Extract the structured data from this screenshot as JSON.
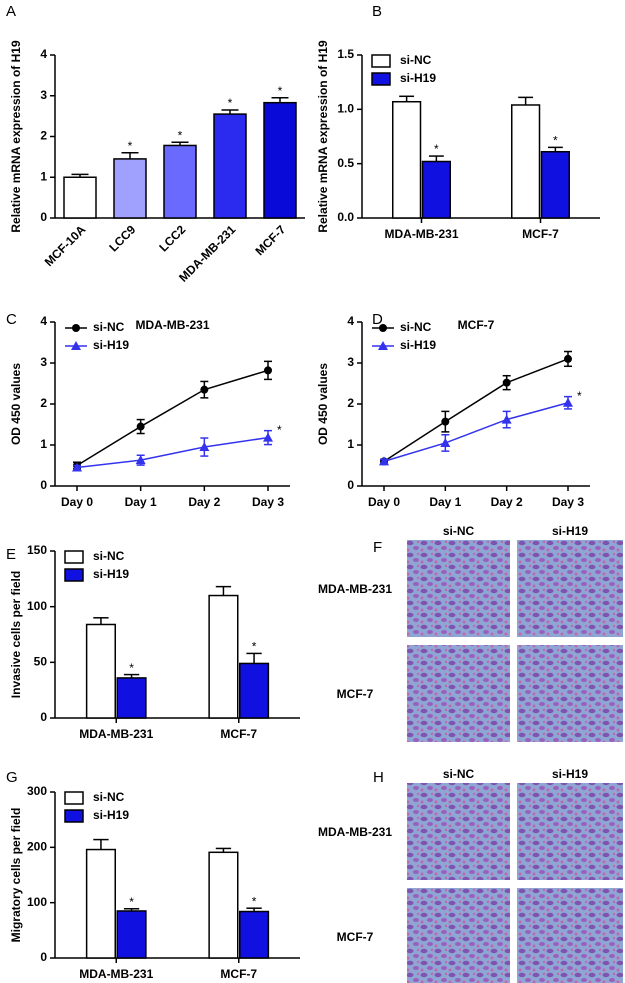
{
  "chart_data": [
    {
      "type": "bar",
      "letter": "A",
      "ylabel": "Relative mRNA expression of H19",
      "categories": [
        "MCF-10A",
        "LCC9",
        "LCC2",
        "MDA-MB-231",
        "MCF-7"
      ],
      "values": [
        1.0,
        1.45,
        1.78,
        2.55,
        2.83
      ],
      "errors": [
        0.07,
        0.15,
        0.08,
        0.1,
        0.12
      ],
      "markers": [
        null,
        "*",
        "*",
        "*",
        "*"
      ],
      "colors": [
        "#ffffff",
        "#a0a0ff",
        "#6a6aff",
        "#2b2bf0",
        "#0a0ad8"
      ],
      "ylim": [
        0,
        4
      ],
      "yticks": [
        0,
        1,
        2,
        3,
        4
      ]
    },
    {
      "type": "bar",
      "letter": "B",
      "ylabel": "Relative mRNA expression of H19",
      "categories": [
        "MDA-MB-231",
        "MCF-7"
      ],
      "series": [
        {
          "name": "si-NC",
          "color": "#ffffff",
          "values": [
            1.07,
            1.04
          ],
          "errors": [
            0.05,
            0.07
          ]
        },
        {
          "name": "si-H19",
          "color": "#1010e0",
          "values": [
            0.52,
            0.61
          ],
          "errors": [
            0.05,
            0.04
          ],
          "markers": [
            "*",
            "*"
          ]
        }
      ],
      "ylim": [
        0,
        1.5
      ],
      "yticks": [
        {
          "value": 0,
          "label": "0.0"
        },
        0.5,
        {
          "value": 1,
          "label": "1.0"
        },
        1.5
      ],
      "legend": "upper left"
    },
    {
      "type": "line",
      "letter": "C",
      "annotation": "MDA-MB-231",
      "ylabel": "OD 450 values",
      "categories": [
        "Day 0",
        "Day 1",
        "Day 2",
        "Day 3"
      ],
      "series": [
        {
          "name": "si-NC",
          "color": "#000000",
          "marker": "circle",
          "values": [
            0.5,
            1.45,
            2.35,
            2.82
          ],
          "errors": [
            0.08,
            0.17,
            0.2,
            0.22
          ]
        },
        {
          "name": "si-H19",
          "color": "#3333ee",
          "marker": "triangle",
          "values": [
            0.45,
            0.63,
            0.95,
            1.18
          ],
          "errors": [
            0.05,
            0.12,
            0.22,
            0.17
          ],
          "markers": [
            null,
            null,
            null,
            "*"
          ]
        }
      ],
      "ylim": [
        0,
        4
      ],
      "yticks": [
        0,
        1,
        2,
        3,
        4
      ],
      "legend": "upper left"
    },
    {
      "type": "line",
      "letter": "D",
      "annotation": "MCF-7",
      "ylabel": "OD 450 values",
      "categories": [
        "Day 0",
        "Day 1",
        "Day 2",
        "Day 3"
      ],
      "series": [
        {
          "name": "si-NC",
          "color": "#000000",
          "marker": "circle",
          "values": [
            0.6,
            1.57,
            2.52,
            3.1
          ],
          "errors": [
            0.05,
            0.25,
            0.17,
            0.18
          ]
        },
        {
          "name": "si-H19",
          "color": "#3333ee",
          "marker": "triangle",
          "values": [
            0.6,
            1.05,
            1.62,
            2.03
          ],
          "errors": [
            0.05,
            0.2,
            0.2,
            0.15
          ],
          "markers": [
            null,
            null,
            null,
            "*"
          ]
        }
      ],
      "ylim": [
        0,
        4
      ],
      "yticks": [
        0,
        1,
        2,
        3,
        4
      ],
      "legend": "upper left"
    },
    {
      "type": "bar",
      "letter": "E",
      "ylabel": "Invasive cells per field",
      "categories": [
        "MDA-MB-231",
        "MCF-7"
      ],
      "series": [
        {
          "name": "si-NC",
          "color": "#ffffff",
          "values": [
            84,
            110
          ],
          "errors": [
            6,
            8
          ]
        },
        {
          "name": "si-H19",
          "color": "#1010e0",
          "values": [
            36,
            49
          ],
          "errors": [
            3,
            9
          ],
          "markers": [
            "*",
            "*"
          ]
        }
      ],
      "ylim": [
        0,
        150
      ],
      "yticks": [
        0,
        50,
        100,
        150
      ],
      "legend": "upper left"
    },
    {
      "type": "bar",
      "letter": "G",
      "ylabel": "Migratory cells per field",
      "categories": [
        "MDA-MB-231",
        "MCF-7"
      ],
      "series": [
        {
          "name": "si-NC",
          "color": "#ffffff",
          "values": [
            196,
            191
          ],
          "errors": [
            18,
            7
          ]
        },
        {
          "name": "si-H19",
          "color": "#1010e0",
          "values": [
            85,
            84
          ],
          "errors": [
            4,
            6
          ],
          "markers": [
            "*",
            "*"
          ]
        }
      ],
      "ylim": [
        0,
        300
      ],
      "yticks": [
        0,
        100,
        200,
        300
      ],
      "legend": "upper left"
    }
  ],
  "image_panels": [
    {
      "letter": "F",
      "columns": [
        "si-NC",
        "si-H19"
      ],
      "rows": [
        "MDA-MB-231",
        "MCF-7"
      ]
    },
    {
      "letter": "H",
      "columns": [
        "si-NC",
        "si-H19"
      ],
      "rows": [
        "MDA-MB-231",
        "MCF-7"
      ]
    }
  ]
}
